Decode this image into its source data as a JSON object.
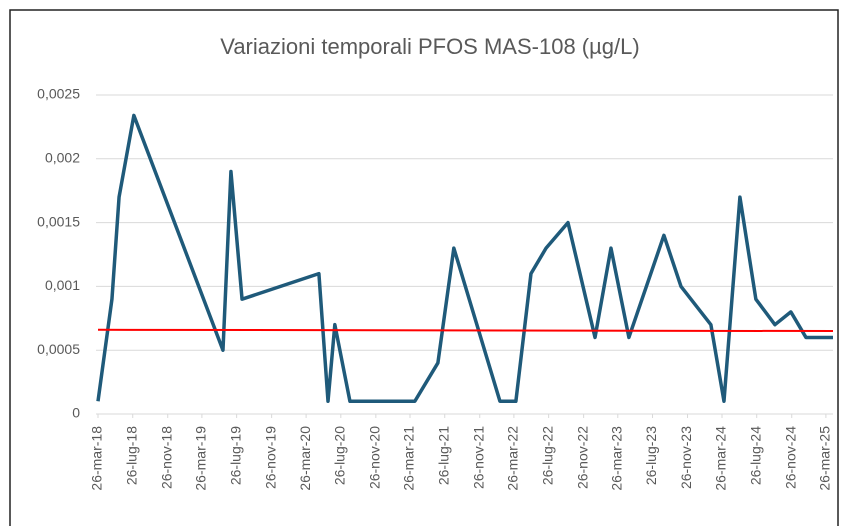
{
  "chart_data": {
    "type": "line",
    "title": "Variazioni temporali PFOS MAS-108 (µg/L)",
    "series": [
      {
        "color": "#1f5a7a",
        "x": [
          "2018-03-26",
          "2018-05-14",
          "2018-06-08",
          "2018-07-30",
          "2019-06-08",
          "2019-07-06",
          "2019-08-14",
          "2020-05-10",
          "2020-06-11",
          "2020-07-05",
          "2020-08-27",
          "2021-04-12",
          "2021-07-02",
          "2021-08-27",
          "2022-02-05",
          "2022-04-02",
          "2022-05-25",
          "2022-07-17",
          "2022-10-02",
          "2023-01-05",
          "2023-03-02",
          "2023-05-04",
          "2023-09-04",
          "2023-11-03",
          "2024-02-16",
          "2024-04-02",
          "2024-05-28",
          "2024-07-23",
          "2024-09-28",
          "2024-11-23",
          "2025-01-15",
          "2025-04-20"
        ],
        "values": [
          0.0001,
          0.0009,
          0.0017,
          0.00234,
          0.0005,
          0.0019,
          0.0009,
          0.0011,
          0.0001,
          0.0007,
          0.0001,
          0.0001,
          0.0004,
          0.0013,
          0.0001,
          0.0001,
          0.0011,
          0.0013,
          0.0015,
          0.0006,
          0.0013,
          0.0006,
          0.0014,
          0.001,
          0.0007,
          0.0001,
          0.0017,
          0.0009,
          0.0007,
          0.0008,
          0.0006,
          0.0006
        ]
      },
      {
        "color": "#ff0000",
        "x": [
          "2018-03-26",
          "2025-04-20"
        ],
        "values": [
          0.00066,
          0.00065
        ]
      }
    ],
    "xlim": [
      "2018-03-26",
      "2025-04-20"
    ],
    "xticks": [
      {
        "value": "2018-03-26",
        "label": "26-mar-18"
      },
      {
        "value": "2018-07-26",
        "label": "26-lug-18"
      },
      {
        "value": "2018-11-26",
        "label": "26-nov-18"
      },
      {
        "value": "2019-03-26",
        "label": "26-mar-19"
      },
      {
        "value": "2019-07-26",
        "label": "26-lug-19"
      },
      {
        "value": "2019-11-26",
        "label": "26-nov-19"
      },
      {
        "value": "2020-03-26",
        "label": "26-mar-20"
      },
      {
        "value": "2020-07-26",
        "label": "26-lug-20"
      },
      {
        "value": "2020-11-26",
        "label": "26-nov-20"
      },
      {
        "value": "2021-03-26",
        "label": "26-mar-21"
      },
      {
        "value": "2021-07-26",
        "label": "26-lug-21"
      },
      {
        "value": "2021-11-26",
        "label": "26-nov-21"
      },
      {
        "value": "2022-03-26",
        "label": "26-mar-22"
      },
      {
        "value": "2022-07-26",
        "label": "26-lug-22"
      },
      {
        "value": "2022-11-26",
        "label": "26-nov-22"
      },
      {
        "value": "2023-03-26",
        "label": "26-mar-23"
      },
      {
        "value": "2023-07-26",
        "label": "26-lug-23"
      },
      {
        "value": "2023-11-26",
        "label": "26-nov-23"
      },
      {
        "value": "2024-03-26",
        "label": "26-mar-24"
      },
      {
        "value": "2024-07-26",
        "label": "26-lug-24"
      },
      {
        "value": "2024-11-26",
        "label": "26-nov-24"
      },
      {
        "value": "2025-03-26",
        "label": "26-mar-25"
      }
    ],
    "ylim": [
      0,
      0.0025
    ],
    "yticks": [
      0,
      {
        "value": 0.0005,
        "label": "0,0005"
      },
      {
        "value": 0.001,
        "label": "0,001"
      },
      {
        "value": 0.0015,
        "label": "0,0015"
      },
      {
        "value": 0.002,
        "label": "0,002"
      },
      {
        "value": 0.0025,
        "label": "0,0025"
      }
    ],
    "grid": true
  }
}
